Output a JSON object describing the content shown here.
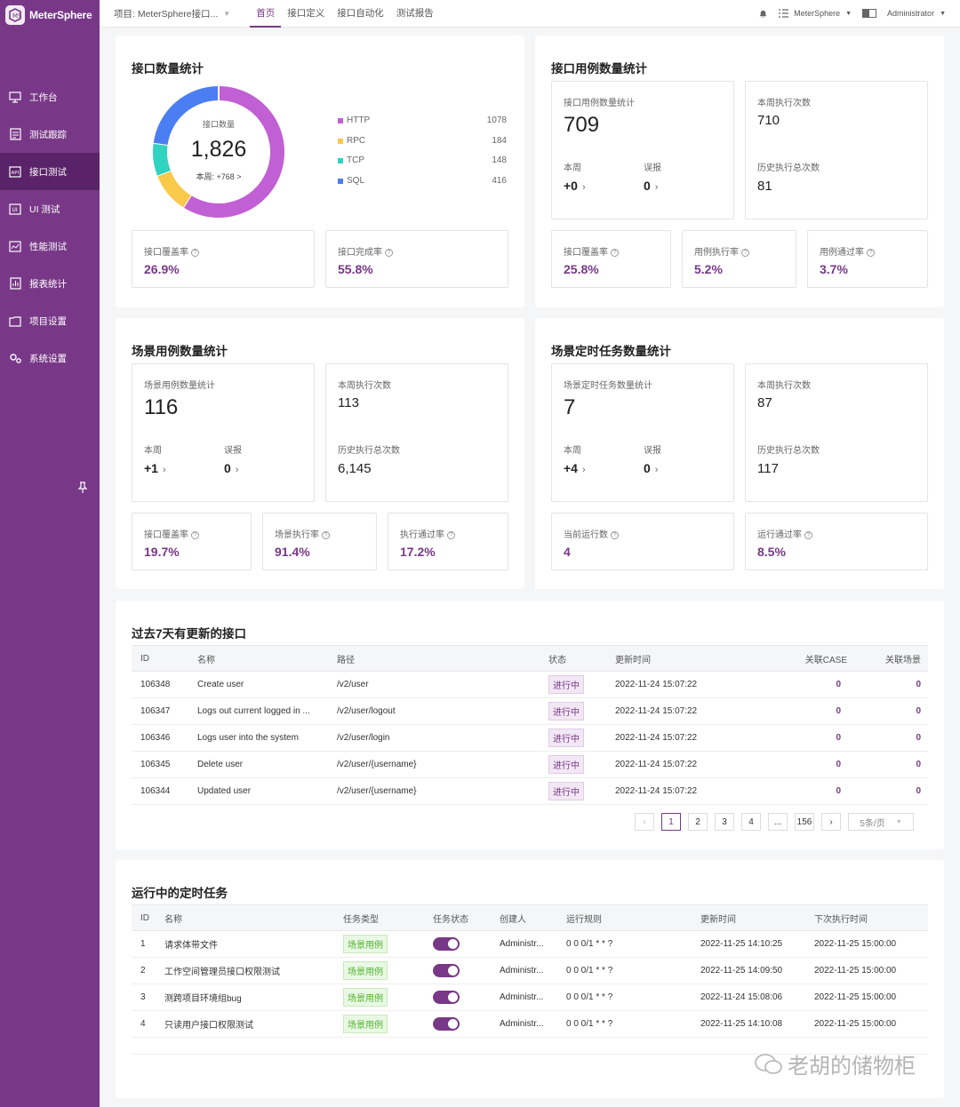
{
  "app": {
    "name": "MeterSphere"
  },
  "sidebar": {
    "items": [
      {
        "label": "工作台",
        "icon": "monitor-icon"
      },
      {
        "label": "测试跟踪",
        "icon": "track-icon"
      },
      {
        "label": "接口测试",
        "icon": "api-icon"
      },
      {
        "label": "UI 测试",
        "icon": "ui-icon"
      },
      {
        "label": "性能测试",
        "icon": "performance-icon"
      },
      {
        "label": "报表统计",
        "icon": "report-icon"
      },
      {
        "label": "项目设置",
        "icon": "folder-icon"
      },
      {
        "label": "系统设置",
        "icon": "gears-icon"
      }
    ],
    "active_index": 2
  },
  "header": {
    "project": "项目: MeterSphere接口...",
    "tabs": [
      "首页",
      "接口定义",
      "接口自动化",
      "测试报告"
    ],
    "active_tab": 0,
    "workspace": "MeterSphere",
    "user": "Administrator"
  },
  "api_count": {
    "title": "接口数量统计",
    "donut_label": "接口数量",
    "total": "1,826",
    "week": "本周: +768 >",
    "legend": [
      {
        "name": "HTTP",
        "value": "1078",
        "color": "#c15fd4"
      },
      {
        "name": "RPC",
        "value": "184",
        "color": "#f9c94a"
      },
      {
        "name": "TCP",
        "value": "148",
        "color": "#30d3c1"
      },
      {
        "name": "SQL",
        "value": "416",
        "color": "#4b7ef2"
      }
    ],
    "coverage_label": "接口覆盖率",
    "coverage": "26.9%",
    "completion_label": "接口完成率",
    "completion": "55.8%"
  },
  "api_case": {
    "title": "接口用例数量统计",
    "count_label": "接口用例数量统计",
    "count": "709",
    "week_label": "本周",
    "week": "+0",
    "false_label": "误报",
    "false_val": "0",
    "exec_week_label": "本周执行次数",
    "exec_week": "710",
    "history_label": "历史执行总次数",
    "history": "81",
    "coverage_label": "接口覆盖率",
    "coverage": "25.8%",
    "exec_rate_label": "用例执行率",
    "exec_rate": "5.2%",
    "pass_rate_label": "用例通过率",
    "pass_rate": "3.7%"
  },
  "scenario_case": {
    "title": "场景用例数量统计",
    "count_label": "场景用例数量统计",
    "count": "116",
    "week_label": "本周",
    "week": "+1",
    "false_label": "误报",
    "false_val": "0",
    "exec_week_label": "本周执行次数",
    "exec_week": "113",
    "history_label": "历史执行总次数",
    "history": "6,145",
    "coverage_label": "接口覆盖率",
    "coverage": "19.7%",
    "exec_rate_label": "场景执行率",
    "exec_rate": "91.4%",
    "pass_rate_label": "执行通过率",
    "pass_rate": "17.2%"
  },
  "scenario_schedule": {
    "title": "场景定时任务数量统计",
    "count_label": "场景定时任务数量统计",
    "count": "7",
    "week_label": "本周",
    "week": "+4",
    "false_label": "误报",
    "false_val": "0",
    "exec_week_label": "本周执行次数",
    "exec_week": "87",
    "history_label": "历史执行总次数",
    "history": "117",
    "running_label": "当前运行数",
    "running": "4",
    "run_pass_label": "运行通过率",
    "run_pass": "8.5%"
  },
  "updated_apis": {
    "title": "过去7天有更新的接口",
    "columns": [
      "ID",
      "名称",
      "路径",
      "状态",
      "更新时间",
      "关联CASE",
      "关联场景"
    ],
    "rows": [
      {
        "id": "106348",
        "name": "Create user",
        "path": "/v2/user",
        "status": "进行中",
        "time": "2022-11-24 15:07:22",
        "cases": "0",
        "scenes": "0"
      },
      {
        "id": "106347",
        "name": "Logs out current logged in ...",
        "path": "/v2/user/logout",
        "status": "进行中",
        "time": "2022-11-24 15:07:22",
        "cases": "0",
        "scenes": "0"
      },
      {
        "id": "106346",
        "name": "Logs user into the system",
        "path": "/v2/user/login",
        "status": "进行中",
        "time": "2022-11-24 15:07:22",
        "cases": "0",
        "scenes": "0"
      },
      {
        "id": "106345",
        "name": "Delete user",
        "path": "/v2/user/{username}",
        "status": "进行中",
        "time": "2022-11-24 15:07:22",
        "cases": "0",
        "scenes": "0"
      },
      {
        "id": "106344",
        "name": "Updated user",
        "path": "/v2/user/{username}",
        "status": "进行中",
        "time": "2022-11-24 15:07:22",
        "cases": "0",
        "scenes": "0"
      }
    ],
    "pagination": {
      "pages": [
        "1",
        "2",
        "3",
        "4",
        "...",
        "156"
      ],
      "active": "1",
      "page_size": "5条/页"
    }
  },
  "running_tasks": {
    "title": "运行中的定时任务",
    "columns": [
      "ID",
      "名称",
      "任务类型",
      "任务状态",
      "创建人",
      "运行规则",
      "更新时间",
      "下次执行时间"
    ],
    "rows": [
      {
        "id": "1",
        "name": "请求体带文件",
        "type": "场景用例",
        "enabled": true,
        "creator": "Administr...",
        "rule": "0 0 0/1 * * ?",
        "updated": "2022-11-25 14:10:25",
        "next": "2022-11-25 15:00:00"
      },
      {
        "id": "2",
        "name": "工作空间管理员接口权限测试",
        "type": "场景用例",
        "enabled": true,
        "creator": "Administr...",
        "rule": "0 0 0/1 * * ?",
        "updated": "2022-11-25 14:09:50",
        "next": "2022-11-25 15:00:00"
      },
      {
        "id": "3",
        "name": "测跨项目环境组bug",
        "type": "场景用例",
        "enabled": true,
        "creator": "Administr...",
        "rule": "0 0 0/1 * * ?",
        "updated": "2022-11-24 15:08:06",
        "next": "2022-11-25 15:00:00"
      },
      {
        "id": "4",
        "name": "只读用户接口权限测试",
        "type": "场景用例",
        "enabled": true,
        "creator": "Administr...",
        "rule": "0 0 0/1 * * ?",
        "updated": "2022-11-25 14:10:08",
        "next": "2022-11-25 15:00:00"
      }
    ]
  },
  "watermark": "老胡的储物柜"
}
